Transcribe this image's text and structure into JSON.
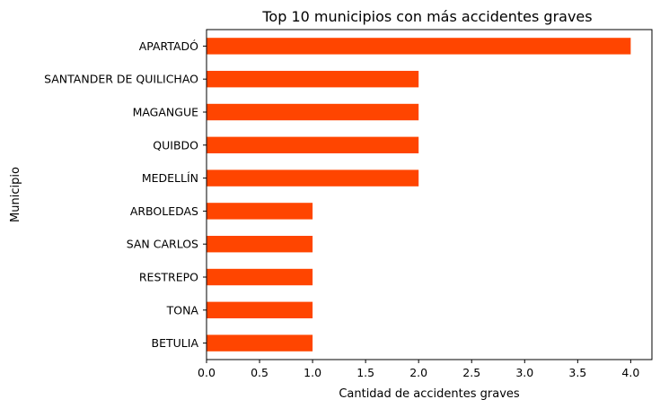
{
  "chart_data": {
    "type": "bar",
    "orientation": "horizontal",
    "title": "Top 10 municipios con más accidentes graves",
    "xlabel": "Cantidad de accidentes graves",
    "ylabel": "Municipio",
    "categories": [
      "APARTADÓ",
      "SANTANDER DE QUILICHAO",
      "MAGANGUE",
      "QUIBDO",
      "MEDELLÍN",
      "ARBOLEDAS",
      "SAN CARLOS",
      "RESTREPO",
      "TONA",
      "BETULIA"
    ],
    "values": [
      4,
      2,
      2,
      2,
      2,
      1,
      1,
      1,
      1,
      1
    ],
    "xlim": [
      0,
      4.2
    ],
    "xticks": [
      0.0,
      0.5,
      1.0,
      1.5,
      2.0,
      2.5,
      3.0,
      3.5,
      4.0
    ],
    "xtick_labels": [
      "0.0",
      "0.5",
      "1.0",
      "1.5",
      "2.0",
      "2.5",
      "3.0",
      "3.5",
      "4.0"
    ],
    "grid": false,
    "bar_color": "#ff4500"
  }
}
